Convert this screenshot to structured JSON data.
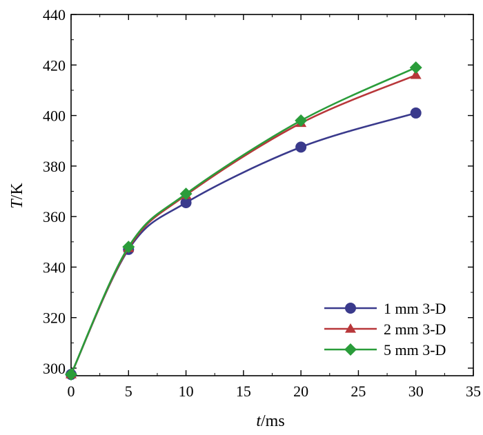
{
  "chart_data": {
    "type": "line",
    "title": "",
    "xlabel_italic": "t",
    "xlabel_rest": "/ms",
    "ylabel_italic": "T",
    "ylabel_rest": "/K",
    "xlim": [
      0,
      35
    ],
    "ylim": [
      297,
      440
    ],
    "xticks": [
      0,
      5,
      10,
      15,
      20,
      25,
      30,
      35
    ],
    "yticks": [
      300,
      320,
      340,
      360,
      380,
      400,
      420,
      440
    ],
    "x": [
      0,
      5,
      10,
      20,
      30
    ],
    "grid": false,
    "legend_position": "bottom-right",
    "series": [
      {
        "name": "1 mm 3-D",
        "color": "#3a3a8c",
        "marker": "circle",
        "values": [
          297.5,
          347,
          365.5,
          387.5,
          401
        ]
      },
      {
        "name": "2 mm 3-D",
        "color": "#b8373a",
        "marker": "triangle",
        "values": [
          297.5,
          347.5,
          368.5,
          397,
          416
        ]
      },
      {
        "name": "5 mm 3-D",
        "color": "#2a9c3a",
        "marker": "diamond",
        "values": [
          297.5,
          348,
          369,
          398,
          419
        ]
      }
    ]
  }
}
